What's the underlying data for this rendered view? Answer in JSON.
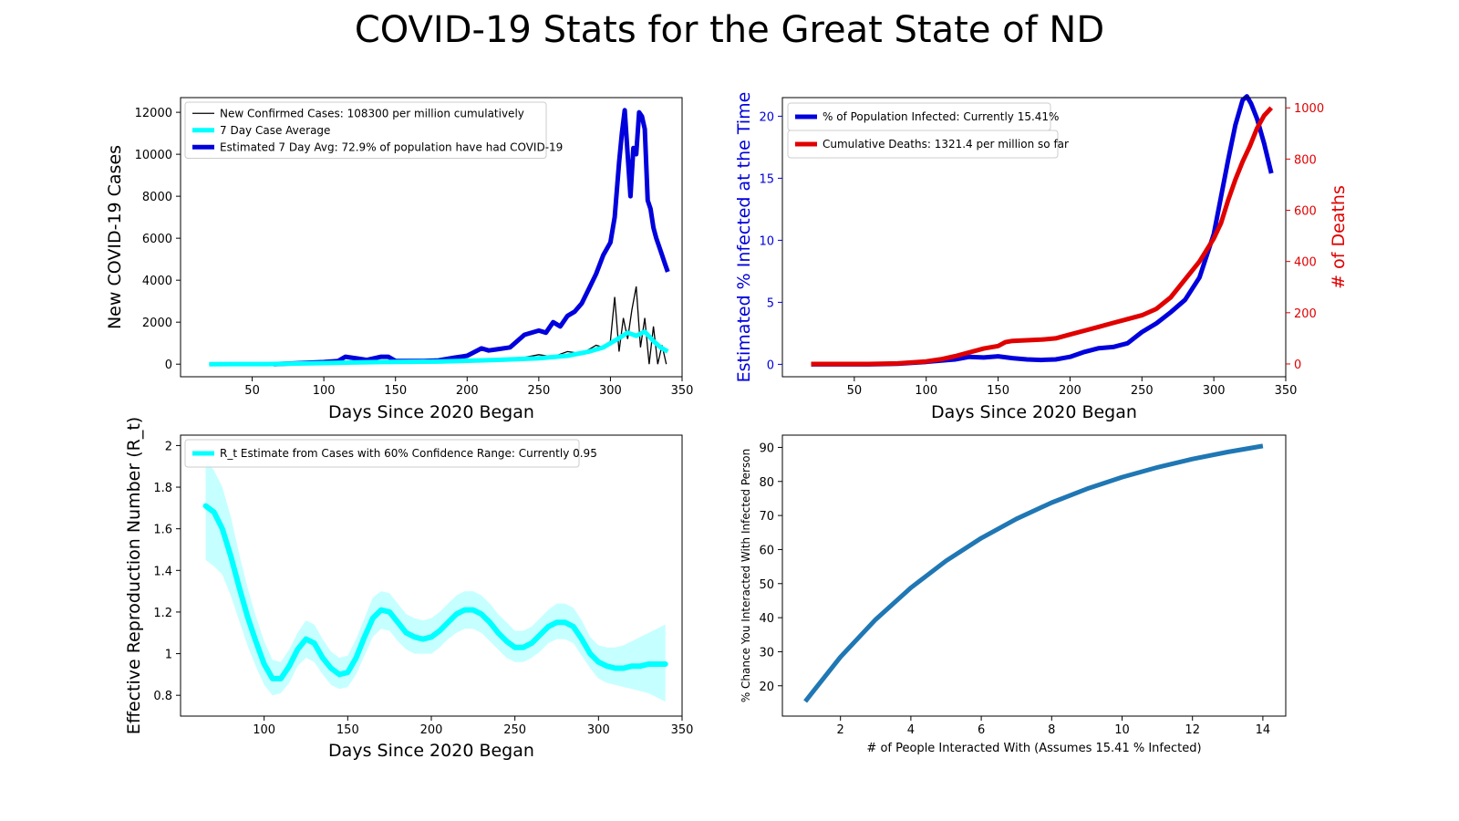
{
  "figure": {
    "title": "COVID-19 Stats for the Great State of ND"
  },
  "colors": {
    "black": "#000000",
    "cyan": "#00ffff",
    "blue": "#0000dd",
    "red": "#e00000",
    "steel": "#1f77b4",
    "band": "#b3ffff"
  },
  "chart_data": [
    {
      "type": "line",
      "title": "",
      "xlabel": "Days Since 2020 Began",
      "ylabel": "New COVID-19 Cases",
      "xlim": [
        0,
        350
      ],
      "ylim": [
        -600,
        12700
      ],
      "xticks": [
        50,
        100,
        150,
        200,
        250,
        300,
        350
      ],
      "yticks": [
        0,
        2000,
        4000,
        6000,
        8000,
        10000,
        12000
      ],
      "legend_position": "upper-left",
      "series": [
        {
          "name": "New Confirmed Cases: 108300 per million cumulatively",
          "color": "#000000",
          "x": [
            20,
            60,
            100,
            120,
            140,
            160,
            180,
            200,
            220,
            240,
            250,
            260,
            270,
            280,
            290,
            295,
            300,
            303,
            306,
            309,
            312,
            315,
            318,
            321,
            324,
            327,
            330,
            333,
            336,
            339
          ],
          "y": [
            0,
            5,
            60,
            150,
            100,
            90,
            110,
            180,
            260,
            320,
            450,
            350,
            600,
            500,
            900,
            800,
            1100,
            3200,
            600,
            2200,
            1200,
            2600,
            3700,
            800,
            2200,
            0,
            1800,
            0,
            900,
            0
          ]
        },
        {
          "name": "7 Day Case Average",
          "color": "#00ffff",
          "x": [
            20,
            60,
            100,
            140,
            180,
            220,
            250,
            270,
            285,
            295,
            305,
            312,
            318,
            324,
            330,
            335,
            340
          ],
          "y": [
            0,
            5,
            50,
            100,
            120,
            200,
            280,
            400,
            600,
            800,
            1200,
            1500,
            1350,
            1550,
            1100,
            800,
            600
          ]
        },
        {
          "name": "Estimated 7 Day Avg: 72.9% of population have had COVID-19",
          "color": "#0000dd",
          "x": [
            65,
            80,
            100,
            110,
            115,
            125,
            130,
            140,
            145,
            150,
            160,
            170,
            180,
            190,
            200,
            210,
            215,
            220,
            230,
            240,
            250,
            255,
            260,
            265,
            270,
            275,
            280,
            285,
            290,
            295,
            300,
            303,
            306,
            308,
            310,
            312,
            314,
            316,
            318,
            320,
            322,
            324,
            326,
            328,
            330,
            332,
            334,
            336,
            338,
            340
          ],
          "y": [
            0,
            40,
            100,
            150,
            350,
            250,
            200,
            350,
            350,
            150,
            150,
            150,
            180,
            300,
            400,
            750,
            650,
            700,
            800,
            1400,
            1600,
            1500,
            2000,
            1800,
            2300,
            2500,
            2900,
            3600,
            4300,
            5200,
            5800,
            7000,
            9600,
            11000,
            12100,
            10000,
            8000,
            10300,
            10000,
            12000,
            11800,
            11200,
            7800,
            7400,
            6500,
            6000,
            5600,
            5200,
            4800,
            4400
          ]
        }
      ]
    },
    {
      "type": "line",
      "title": "",
      "xlabel": "Days Since 2020 Began",
      "ylabel": "Estimated % Infected at the Time",
      "ylabel_right": "# of Deaths",
      "xlim": [
        0,
        350
      ],
      "ylim": [
        -1,
        21.5
      ],
      "ylim_right": [
        -50,
        1040
      ],
      "xticks": [
        50,
        100,
        150,
        200,
        250,
        300,
        350
      ],
      "yticks": [
        0,
        5,
        10,
        15,
        20
      ],
      "yticks_right": [
        0,
        200,
        400,
        600,
        800,
        1000
      ],
      "legend_position": "upper-left",
      "series": [
        {
          "name": "% of Population Infected: Currently 15.41%",
          "color": "#0000dd",
          "axis": "left",
          "x": [
            20,
            60,
            80,
            100,
            120,
            130,
            140,
            150,
            160,
            170,
            180,
            190,
            200,
            210,
            220,
            230,
            240,
            250,
            260,
            270,
            280,
            290,
            300,
            305,
            310,
            315,
            320,
            323,
            326,
            330,
            335,
            340
          ],
          "y": [
            0,
            0,
            0.05,
            0.2,
            0.4,
            0.6,
            0.55,
            0.65,
            0.5,
            0.4,
            0.35,
            0.4,
            0.6,
            1.0,
            1.3,
            1.4,
            1.7,
            2.6,
            3.3,
            4.2,
            5.2,
            7.0,
            10.5,
            13.5,
            16.5,
            19.3,
            21.3,
            21.6,
            21.0,
            19.8,
            17.8,
            15.4
          ]
        },
        {
          "name": "Cumulative Deaths: 1321.4 per million so far",
          "color": "#e00000",
          "axis": "right",
          "x": [
            20,
            60,
            80,
            100,
            110,
            120,
            130,
            140,
            150,
            155,
            160,
            180,
            190,
            200,
            210,
            220,
            230,
            240,
            250,
            260,
            270,
            280,
            290,
            300,
            305,
            310,
            315,
            320,
            325,
            330,
            335,
            340
          ],
          "y": [
            0,
            0,
            2,
            10,
            18,
            30,
            45,
            60,
            70,
            85,
            90,
            95,
            100,
            115,
            130,
            145,
            160,
            175,
            190,
            215,
            260,
            330,
            400,
            490,
            550,
            640,
            720,
            790,
            850,
            920,
            970,
            1000
          ]
        }
      ]
    },
    {
      "type": "area",
      "title": "",
      "xlabel": "Days Since 2020 Began",
      "ylabel": "Effective Reproduction Number (R_t)",
      "xlim": [
        50,
        350
      ],
      "ylim": [
        0.7,
        2.05
      ],
      "xticks": [
        100,
        150,
        200,
        250,
        300,
        350
      ],
      "yticks": [
        0.8,
        1.0,
        1.2,
        1.4,
        1.6,
        1.8,
        2.0
      ],
      "legend_position": "upper-left",
      "series": [
        {
          "name": "R_t Estimate from Cases with 60% Confidence Range: Currently 0.95",
          "color": "#00ffff",
          "x": [
            65,
            70,
            75,
            80,
            85,
            90,
            95,
            100,
            105,
            110,
            115,
            120,
            125,
            130,
            135,
            140,
            145,
            150,
            155,
            160,
            165,
            170,
            175,
            180,
            185,
            190,
            195,
            200,
            205,
            210,
            215,
            220,
            225,
            230,
            235,
            240,
            245,
            250,
            255,
            260,
            265,
            270,
            275,
            280,
            285,
            290,
            295,
            300,
            305,
            310,
            315,
            320,
            325,
            330,
            335,
            340
          ],
          "y": [
            1.71,
            1.68,
            1.6,
            1.47,
            1.32,
            1.18,
            1.06,
            0.95,
            0.88,
            0.88,
            0.94,
            1.02,
            1.07,
            1.05,
            0.98,
            0.93,
            0.9,
            0.91,
            0.98,
            1.08,
            1.17,
            1.21,
            1.2,
            1.15,
            1.1,
            1.08,
            1.07,
            1.08,
            1.11,
            1.15,
            1.19,
            1.21,
            1.21,
            1.19,
            1.15,
            1.1,
            1.06,
            1.03,
            1.03,
            1.05,
            1.09,
            1.13,
            1.15,
            1.15,
            1.13,
            1.07,
            1.0,
            0.96,
            0.94,
            0.93,
            0.93,
            0.94,
            0.94,
            0.95,
            0.95,
            0.95
          ],
          "lower": [
            1.45,
            1.42,
            1.38,
            1.28,
            1.16,
            1.04,
            0.94,
            0.85,
            0.8,
            0.81,
            0.86,
            0.94,
            0.98,
            0.96,
            0.9,
            0.85,
            0.83,
            0.84,
            0.9,
            0.99,
            1.08,
            1.12,
            1.11,
            1.06,
            1.02,
            1.0,
            1.0,
            1.0,
            1.03,
            1.07,
            1.1,
            1.12,
            1.12,
            1.1,
            1.06,
            1.02,
            0.98,
            0.96,
            0.96,
            0.98,
            1.01,
            1.05,
            1.07,
            1.07,
            1.05,
            0.99,
            0.93,
            0.88,
            0.86,
            0.85,
            0.84,
            0.83,
            0.82,
            0.81,
            0.79,
            0.77
          ],
          "upper": [
            1.93,
            1.88,
            1.8,
            1.66,
            1.48,
            1.32,
            1.18,
            1.06,
            0.97,
            0.96,
            1.02,
            1.1,
            1.16,
            1.14,
            1.07,
            1.01,
            0.98,
            0.99,
            1.07,
            1.17,
            1.27,
            1.3,
            1.29,
            1.24,
            1.19,
            1.17,
            1.16,
            1.17,
            1.2,
            1.24,
            1.28,
            1.3,
            1.3,
            1.28,
            1.24,
            1.19,
            1.15,
            1.11,
            1.11,
            1.13,
            1.17,
            1.21,
            1.24,
            1.24,
            1.22,
            1.16,
            1.08,
            1.04,
            1.03,
            1.03,
            1.04,
            1.06,
            1.08,
            1.1,
            1.12,
            1.14
          ]
        }
      ]
    },
    {
      "type": "line",
      "title": "",
      "xlabel": "# of People Interacted With (Assumes 15.41 % Infected)",
      "ylabel": "% Chance You Interacted With Infected Person",
      "xlim": [
        0.35,
        14.65
      ],
      "ylim": [
        11.1,
        93.6
      ],
      "xticks": [
        2,
        4,
        6,
        8,
        10,
        12,
        14
      ],
      "yticks": [
        20,
        30,
        40,
        50,
        60,
        70,
        80,
        90
      ],
      "series": [
        {
          "color": "#1f77b4",
          "x": [
            1,
            2,
            3,
            4,
            5,
            6,
            7,
            8,
            9,
            10,
            11,
            12,
            13,
            14
          ],
          "y": [
            15.41,
            28.45,
            39.47,
            48.8,
            56.69,
            63.36,
            69.0,
            73.78,
            77.82,
            81.24,
            84.13,
            86.58,
            88.65,
            90.4
          ]
        }
      ]
    }
  ]
}
